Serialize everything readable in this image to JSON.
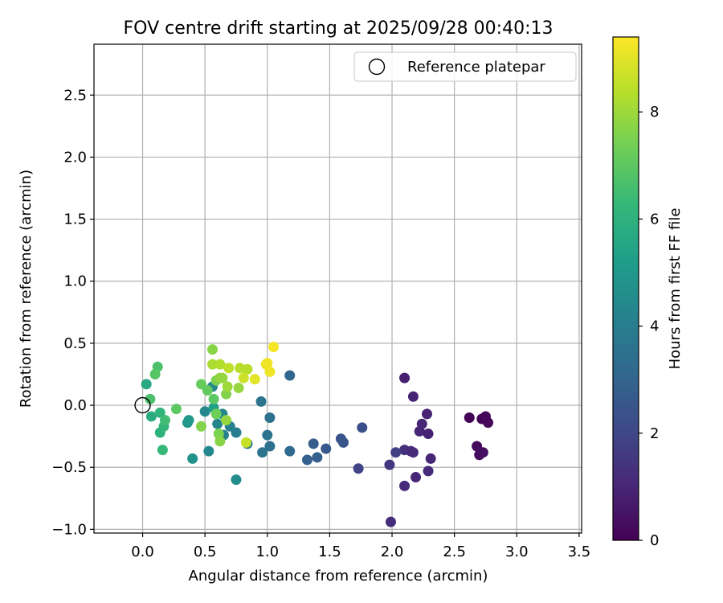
{
  "chart_data": {
    "type": "scatter",
    "title": "FOV centre drift starting at 2025/09/28 00:40:13",
    "xlabel": "Angular distance from reference (arcmin)",
    "ylabel": "Rotation from reference (arcmin)",
    "xlim": [
      -0.39,
      3.52
    ],
    "ylim": [
      -1.03,
      2.91
    ],
    "xticks": [
      "0.0",
      "0.5",
      "1.0",
      "1.5",
      "2.0",
      "2.5",
      "3.0",
      "3.5"
    ],
    "xtick_values": [
      0,
      0.5,
      1.0,
      1.5,
      2.0,
      2.5,
      3.0,
      3.5
    ],
    "yticks": [
      "−1.0",
      "−0.5",
      "0.0",
      "0.5",
      "1.0",
      "1.5",
      "2.0",
      "2.5"
    ],
    "ytick_values": [
      -1.0,
      -0.5,
      0.0,
      0.5,
      1.0,
      1.5,
      2.0,
      2.5
    ],
    "grid": true,
    "legend": {
      "position": "top-right",
      "entries": [
        "Reference platepar"
      ]
    },
    "reference_point": {
      "x": 0.0,
      "y": 0.0
    },
    "colormap": "viridis",
    "colorbar": {
      "label": "Hours from first FF file",
      "range": [
        0,
        9.4
      ],
      "ticks": [
        "0",
        "2",
        "4",
        "6",
        "8"
      ],
      "tick_values": [
        0,
        2,
        4,
        6,
        8
      ]
    },
    "points": [
      {
        "x": 2.62,
        "y": -0.1,
        "hours": 0.05
      },
      {
        "x": 2.72,
        "y": -0.11,
        "hours": 0.1
      },
      {
        "x": 2.75,
        "y": -0.09,
        "hours": 0.15
      },
      {
        "x": 2.77,
        "y": -0.14,
        "hours": 0.2
      },
      {
        "x": 2.68,
        "y": -0.33,
        "hours": 0.25
      },
      {
        "x": 2.7,
        "y": -0.4,
        "hours": 0.3
      },
      {
        "x": 2.73,
        "y": -0.38,
        "hours": 0.35
      },
      {
        "x": 2.1,
        "y": 0.22,
        "hours": 0.8
      },
      {
        "x": 2.17,
        "y": 0.07,
        "hours": 0.9
      },
      {
        "x": 2.28,
        "y": -0.07,
        "hours": 0.95
      },
      {
        "x": 2.24,
        "y": -0.15,
        "hours": 1.0
      },
      {
        "x": 2.22,
        "y": -0.21,
        "hours": 1.0
      },
      {
        "x": 2.29,
        "y": -0.23,
        "hours": 0.9
      },
      {
        "x": 2.1,
        "y": -0.36,
        "hours": 1.3
      },
      {
        "x": 2.15,
        "y": -0.37,
        "hours": 1.2
      },
      {
        "x": 2.17,
        "y": -0.38,
        "hours": 1.1
      },
      {
        "x": 2.31,
        "y": -0.43,
        "hours": 1.0
      },
      {
        "x": 2.29,
        "y": -0.53,
        "hours": 1.1
      },
      {
        "x": 2.19,
        "y": -0.58,
        "hours": 1.0
      },
      {
        "x": 2.1,
        "y": -0.65,
        "hours": 1.1
      },
      {
        "x": 1.99,
        "y": -0.94,
        "hours": 1.2
      },
      {
        "x": 1.98,
        "y": -0.48,
        "hours": 1.5
      },
      {
        "x": 2.03,
        "y": -0.38,
        "hours": 1.8
      },
      {
        "x": 1.73,
        "y": -0.51,
        "hours": 1.9
      },
      {
        "x": 1.76,
        "y": -0.18,
        "hours": 2.3
      },
      {
        "x": 1.59,
        "y": -0.27,
        "hours": 2.4
      },
      {
        "x": 1.61,
        "y": -0.3,
        "hours": 2.5
      },
      {
        "x": 1.47,
        "y": -0.35,
        "hours": 2.6
      },
      {
        "x": 1.37,
        "y": -0.31,
        "hours": 2.7
      },
      {
        "x": 1.4,
        "y": -0.42,
        "hours": 2.8
      },
      {
        "x": 1.32,
        "y": -0.44,
        "hours": 2.9
      },
      {
        "x": 1.18,
        "y": -0.37,
        "hours": 3.2
      },
      {
        "x": 1.18,
        "y": 0.24,
        "hours": 3.1
      },
      {
        "x": 1.02,
        "y": -0.1,
        "hours": 3.5
      },
      {
        "x": 1.0,
        "y": -0.24,
        "hours": 3.6
      },
      {
        "x": 1.02,
        "y": -0.33,
        "hours": 3.5
      },
      {
        "x": 0.96,
        "y": -0.38,
        "hours": 3.6
      },
      {
        "x": 0.95,
        "y": 0.03,
        "hours": 3.6
      },
      {
        "x": 0.84,
        "y": -0.31,
        "hours": 3.8
      },
      {
        "x": 0.75,
        "y": -0.22,
        "hours": 4.0
      },
      {
        "x": 0.7,
        "y": -0.17,
        "hours": 4.1
      },
      {
        "x": 0.65,
        "y": -0.24,
        "hours": 4.2
      },
      {
        "x": 0.64,
        "y": -0.07,
        "hours": 4.3
      },
      {
        "x": 0.6,
        "y": -0.15,
        "hours": 4.3
      },
      {
        "x": 0.56,
        "y": 0.15,
        "hours": 4.4
      },
      {
        "x": 0.5,
        "y": -0.05,
        "hours": 4.4
      },
      {
        "x": 0.53,
        "y": -0.37,
        "hours": 4.4
      },
      {
        "x": 0.75,
        "y": -0.6,
        "hours": 4.6
      },
      {
        "x": 0.4,
        "y": -0.43,
        "hours": 4.8
      },
      {
        "x": 0.36,
        "y": -0.14,
        "hours": 4.9
      },
      {
        "x": 0.37,
        "y": -0.12,
        "hours": 5.0
      },
      {
        "x": 0.57,
        "y": -0.02,
        "hours": 5.3
      },
      {
        "x": 0.03,
        "y": 0.17,
        "hours": 5.6
      },
      {
        "x": 0.07,
        "y": -0.09,
        "hours": 5.8
      },
      {
        "x": 0.14,
        "y": -0.22,
        "hours": 6.0
      },
      {
        "x": 0.14,
        "y": -0.06,
        "hours": 6.1
      },
      {
        "x": 0.17,
        "y": -0.17,
        "hours": 6.2
      },
      {
        "x": 0.16,
        "y": -0.36,
        "hours": 6.3
      },
      {
        "x": 0.18,
        "y": -0.12,
        "hours": 6.5
      },
      {
        "x": 0.12,
        "y": 0.31,
        "hours": 6.7
      },
      {
        "x": 0.06,
        "y": 0.05,
        "hours": 6.7
      },
      {
        "x": 0.1,
        "y": 0.25,
        "hours": 6.9
      },
      {
        "x": 0.27,
        "y": -0.03,
        "hours": 7.0
      },
      {
        "x": 0.47,
        "y": 0.17,
        "hours": 7.2
      },
      {
        "x": 0.52,
        "y": 0.12,
        "hours": 7.1
      },
      {
        "x": 0.57,
        "y": 0.05,
        "hours": 7.0
      },
      {
        "x": 0.59,
        "y": -0.07,
        "hours": 7.3
      },
      {
        "x": 0.61,
        "y": -0.23,
        "hours": 7.5
      },
      {
        "x": 0.62,
        "y": -0.29,
        "hours": 7.7
      },
      {
        "x": 0.67,
        "y": -0.12,
        "hours": 7.9
      },
      {
        "x": 0.47,
        "y": -0.17,
        "hours": 7.6
      },
      {
        "x": 0.56,
        "y": 0.45,
        "hours": 7.7
      },
      {
        "x": 0.59,
        "y": 0.2,
        "hours": 7.5
      },
      {
        "x": 0.62,
        "y": 0.22,
        "hours": 7.8
      },
      {
        "x": 0.64,
        "y": 0.22,
        "hours": 7.9
      },
      {
        "x": 0.67,
        "y": 0.09,
        "hours": 7.6
      },
      {
        "x": 0.68,
        "y": 0.15,
        "hours": 8.0
      },
      {
        "x": 0.77,
        "y": 0.14,
        "hours": 7.9
      },
      {
        "x": 0.56,
        "y": 0.33,
        "hours": 8.2
      },
      {
        "x": 0.62,
        "y": 0.33,
        "hours": 8.3
      },
      {
        "x": 0.69,
        "y": 0.3,
        "hours": 8.5
      },
      {
        "x": 0.78,
        "y": 0.3,
        "hours": 8.4
      },
      {
        "x": 0.84,
        "y": 0.29,
        "hours": 8.4
      },
      {
        "x": 0.81,
        "y": 0.22,
        "hours": 8.7
      },
      {
        "x": 0.83,
        "y": -0.3,
        "hours": 8.6
      },
      {
        "x": 0.9,
        "y": 0.21,
        "hours": 9.0
      },
      {
        "x": 0.99,
        "y": 0.33,
        "hours": 9.1
      },
      {
        "x": 1.02,
        "y": 0.27,
        "hours": 9.2
      },
      {
        "x": 1.05,
        "y": 0.47,
        "hours": 9.3
      },
      {
        "x": 1.0,
        "y": 0.34,
        "hours": 9.2
      }
    ]
  }
}
